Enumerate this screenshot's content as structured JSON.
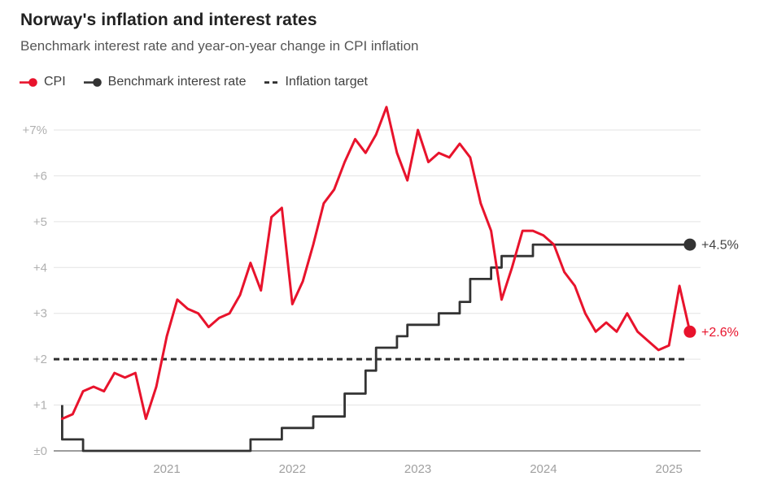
{
  "header": {
    "title": "Norway's inflation and interest rates",
    "subtitle": "Benchmark interest rate and year-on-year change in CPI inflation"
  },
  "legend": {
    "items": [
      {
        "id": "cpi",
        "label": "CPI",
        "color": "#e8132c",
        "marker": "line-dot"
      },
      {
        "id": "benchmark",
        "label": "Benchmark interest rate",
        "color": "#333333",
        "marker": "line-dot"
      },
      {
        "id": "target",
        "label": "Inflation target",
        "color": "#2d2d2d",
        "marker": "dashes"
      }
    ]
  },
  "chart_data": {
    "type": "line",
    "title": "Norway's inflation and interest rates",
    "subtitle": "Benchmark interest rate and year-on-year change in CPI inflation",
    "x_axis": {
      "tick_labels": [
        "2021",
        "2022",
        "2023",
        "2024",
        "2025"
      ],
      "tick_values": [
        2021,
        2022,
        2023,
        2024,
        2025
      ],
      "range": [
        2020.05,
        2025.35
      ]
    },
    "y_axis": {
      "tick_labels": [
        "±0",
        "+1",
        "+2",
        "+3",
        "+4",
        "+5",
        "+6",
        "+7%"
      ],
      "tick_values": [
        0,
        1,
        2,
        3,
        4,
        5,
        6,
        7
      ],
      "range": [
        0,
        7.6
      ],
      "grid": true
    },
    "colors": {
      "grid": "#e3e3e3",
      "baseline": "#7c7c7c",
      "cpi": "#e8132c",
      "benchmark": "#333333",
      "target": "#2d2d2d",
      "ytick_text": "#b0b0b0",
      "xtick_text": "#a0a0a0",
      "benchmark_label_text": "#454545"
    },
    "series": [
      {
        "name": "CPI",
        "type": "line",
        "color": "#e8132c",
        "start_month": "2020-03",
        "values": [
          0.7,
          0.8,
          1.3,
          1.4,
          1.3,
          1.7,
          1.6,
          1.7,
          0.7,
          1.4,
          2.5,
          3.3,
          3.1,
          3.0,
          2.7,
          2.9,
          3.0,
          3.4,
          4.1,
          3.5,
          5.1,
          5.3,
          3.2,
          3.7,
          4.5,
          5.4,
          5.7,
          6.3,
          6.8,
          6.5,
          6.9,
          7.5,
          6.5,
          5.9,
          7.0,
          6.3,
          6.5,
          6.4,
          6.7,
          6.4,
          5.4,
          4.8,
          3.3,
          4.0,
          4.8,
          4.8,
          4.7,
          4.5,
          3.9,
          3.6,
          3.0,
          2.6,
          2.8,
          2.6,
          3.0,
          2.6,
          2.4,
          2.2,
          2.3,
          3.6,
          2.6
        ],
        "end_label": "+2.6%",
        "end_dot": true
      },
      {
        "name": "Benchmark interest rate",
        "type": "step",
        "color": "#333333",
        "changes": [
          [
            "2020-03",
            1.0
          ],
          [
            "2020-03",
            0.25
          ],
          [
            "2020-05",
            0.0
          ],
          [
            "2021-09",
            0.25
          ],
          [
            "2021-12",
            0.5
          ],
          [
            "2022-03",
            0.75
          ],
          [
            "2022-06",
            1.25
          ],
          [
            "2022-08",
            1.75
          ],
          [
            "2022-09",
            2.25
          ],
          [
            "2022-11",
            2.5
          ],
          [
            "2022-12",
            2.75
          ],
          [
            "2023-03",
            3.0
          ],
          [
            "2023-05",
            3.25
          ],
          [
            "2023-06",
            3.75
          ],
          [
            "2023-08",
            4.0
          ],
          [
            "2023-09",
            4.25
          ],
          [
            "2023-12",
            4.5
          ]
        ],
        "end_month": "2025-03",
        "end_label": "+4.5%",
        "end_dot": true
      },
      {
        "name": "Inflation target",
        "type": "dashed-horizontal",
        "color": "#2d2d2d",
        "value": 2
      }
    ]
  }
}
